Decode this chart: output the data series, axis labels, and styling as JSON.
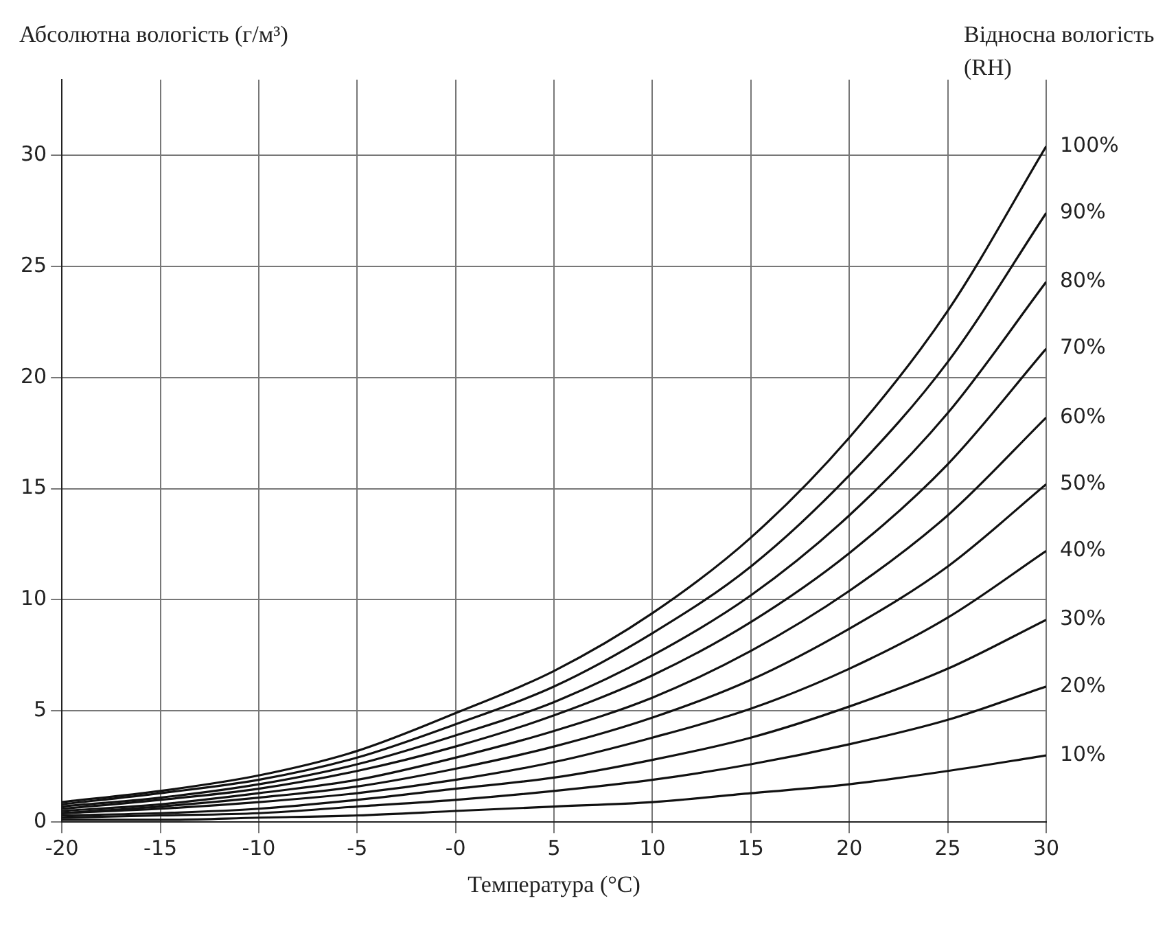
{
  "chart_data": {
    "type": "line",
    "ylabel": "Абсолютна вологість (г/м³)",
    "xlabel": "Температура (°C)",
    "legend_title": "Відносна вологість (RH)",
    "x": [
      -20,
      -15,
      -10,
      -5,
      0,
      5,
      10,
      15,
      20,
      25,
      30
    ],
    "xlim": [
      -20,
      30
    ],
    "xticks": [
      -20,
      -15,
      -10,
      -5,
      {
        "value": 0,
        "label": "-0"
      },
      5,
      10,
      15,
      20,
      25,
      30
    ],
    "ylim": [
      0,
      33.4
    ],
    "yticks": [
      0,
      5,
      10,
      15,
      20,
      25,
      30
    ],
    "grid": true,
    "legend": false,
    "marker": "none",
    "line_style": "solid",
    "series": [
      {
        "name": "100%",
        "color": "#111111",
        "values": [
          0.9,
          1.4,
          2.1,
          3.2,
          4.9,
          6.8,
          9.4,
          12.8,
          17.3,
          23.0,
          30.4
        ]
      },
      {
        "name": "90%",
        "color": "#111111",
        "values": [
          0.8,
          1.3,
          1.9,
          2.9,
          4.4,
          6.1,
          8.5,
          11.5,
          15.6,
          20.7,
          27.4
        ]
      },
      {
        "name": "80%",
        "color": "#111111",
        "values": [
          0.7,
          1.1,
          1.7,
          2.6,
          3.9,
          5.4,
          7.5,
          10.2,
          13.8,
          18.4,
          24.3
        ]
      },
      {
        "name": "70%",
        "color": "#111111",
        "values": [
          0.6,
          1.0,
          1.5,
          2.3,
          3.4,
          4.8,
          6.6,
          9.0,
          12.1,
          16.1,
          21.3
        ]
      },
      {
        "name": "60%",
        "color": "#111111",
        "values": [
          0.5,
          0.8,
          1.3,
          1.9,
          2.9,
          4.1,
          5.6,
          7.7,
          10.4,
          13.8,
          18.2
        ]
      },
      {
        "name": "50%",
        "color": "#111111",
        "values": [
          0.4,
          0.7,
          1.1,
          1.6,
          2.4,
          3.4,
          4.7,
          6.4,
          8.7,
          11.5,
          15.2
        ]
      },
      {
        "name": "40%",
        "color": "#111111",
        "values": [
          0.4,
          0.6,
          0.9,
          1.3,
          1.9,
          2.7,
          3.8,
          5.1,
          6.9,
          9.2,
          12.2
        ]
      },
      {
        "name": "30%",
        "color": "#111111",
        "values": [
          0.3,
          0.4,
          0.6,
          1.0,
          1.5,
          2.0,
          2.8,
          3.8,
          5.2,
          6.9,
          9.1
        ]
      },
      {
        "name": "20%",
        "color": "#111111",
        "values": [
          0.2,
          0.3,
          0.4,
          0.7,
          1.0,
          1.4,
          1.9,
          2.6,
          3.5,
          4.6,
          6.1
        ]
      },
      {
        "name": "10%",
        "color": "#111111",
        "values": [
          0.1,
          0.1,
          0.2,
          0.3,
          0.5,
          0.7,
          0.9,
          1.3,
          1.7,
          2.3,
          3.0
        ]
      }
    ]
  }
}
